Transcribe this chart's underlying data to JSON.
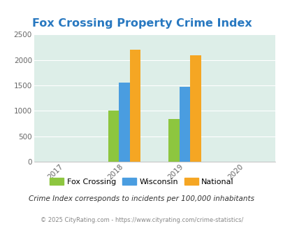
{
  "title": "Fox Crossing Property Crime Index",
  "title_color": "#2878c0",
  "title_fontsize": 11.5,
  "years": [
    2017,
    2018,
    2019,
    2020
  ],
  "bar_groups": {
    "2018": {
      "Fox Crossing": 1000,
      "Wisconsin": 1555,
      "National": 2200
    },
    "2019": {
      "Fox Crossing": 840,
      "Wisconsin": 1480,
      "National": 2100
    }
  },
  "bar_colors": {
    "Fox Crossing": "#8dc63f",
    "Wisconsin": "#4a9de0",
    "National": "#f5a623"
  },
  "ylim": [
    0,
    2500
  ],
  "yticks": [
    0,
    500,
    1000,
    1500,
    2000,
    2500
  ],
  "plot_bg_color": "#ddeee8",
  "legend_labels": [
    "Fox Crossing",
    "Wisconsin",
    "National"
  ],
  "footnote1": "Crime Index corresponds to incidents per 100,000 inhabitants",
  "footnote2": "© 2025 CityRating.com - https://www.cityrating.com/crime-statistics/",
  "bar_width": 0.18
}
